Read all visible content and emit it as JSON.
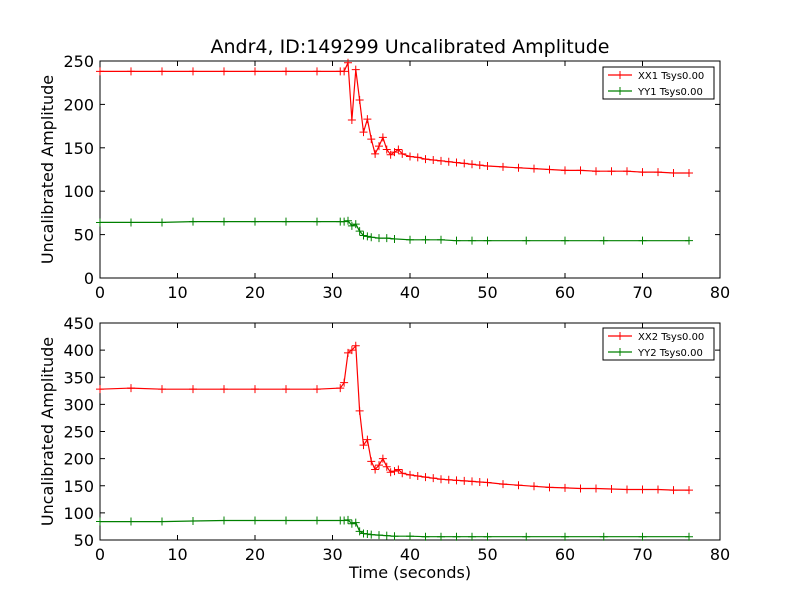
{
  "chart_data": [
    {
      "type": "line",
      "title": "Andr4, ID:149299 Uncalibrated Amplitude",
      "xlabel": "",
      "ylabel": "Uncalibrated Amplitude",
      "xlim": [
        0,
        80
      ],
      "ylim": [
        0,
        250
      ],
      "xticks": [
        "0",
        "10",
        "20",
        "30",
        "40",
        "50",
        "60",
        "70",
        "80"
      ],
      "yticks": [
        "0",
        "50",
        "100",
        "150",
        "200",
        "250"
      ],
      "legend_position": "top-right",
      "marker": "+",
      "series": [
        {
          "name": "XX1 Tsys0.00",
          "color": "#ff0000",
          "x": [
            0,
            4,
            8,
            12,
            16,
            20,
            24,
            28,
            31,
            31.5,
            32,
            32.5,
            33,
            33.5,
            34,
            34.5,
            35,
            35.5,
            36,
            36.5,
            37,
            37.5,
            38,
            38.5,
            39,
            40,
            41,
            42,
            43,
            44,
            45,
            46,
            47,
            48,
            49,
            50,
            52,
            54,
            56,
            58,
            60,
            62,
            64,
            66,
            68,
            70,
            72,
            74,
            76
          ],
          "values": [
            238,
            238,
            238,
            238,
            238,
            238,
            238,
            238,
            238,
            238,
            248,
            182,
            240,
            205,
            168,
            183,
            160,
            143,
            152,
            162,
            148,
            142,
            145,
            148,
            143,
            140,
            139,
            137,
            136,
            135,
            134,
            133,
            132,
            131,
            130,
            129,
            128,
            127,
            126,
            125,
            124,
            124,
            123,
            123,
            123,
            122,
            122,
            121,
            121
          ]
        },
        {
          "name": "YY1 Tsys0.00",
          "color": "#008000",
          "x": [
            0,
            4,
            8,
            12,
            16,
            20,
            24,
            28,
            31,
            31.5,
            32,
            32.5,
            33,
            33.5,
            34,
            34.5,
            35,
            36,
            37,
            38,
            40,
            42,
            44,
            46,
            48,
            50,
            55,
            60,
            65,
            70,
            76
          ],
          "values": [
            64,
            64,
            64,
            65,
            65,
            65,
            65,
            65,
            65,
            65,
            66,
            60,
            62,
            54,
            49,
            48,
            47,
            46,
            46,
            45,
            44,
            44,
            44,
            43,
            43,
            43,
            43,
            43,
            43,
            43,
            43
          ]
        }
      ]
    },
    {
      "type": "line",
      "title": "",
      "xlabel": "Time (seconds)",
      "ylabel": "Uncalibrated Amplitude",
      "xlim": [
        0,
        80
      ],
      "ylim": [
        50,
        450
      ],
      "xticks": [
        "0",
        "10",
        "20",
        "30",
        "40",
        "50",
        "60",
        "70",
        "80"
      ],
      "yticks": [
        "50",
        "100",
        "150",
        "200",
        "250",
        "300",
        "350",
        "400",
        "450"
      ],
      "legend_position": "top-right",
      "marker": "+",
      "series": [
        {
          "name": "XX2 Tsys0.00",
          "color": "#ff0000",
          "x": [
            0,
            4,
            8,
            12,
            16,
            20,
            24,
            28,
            31,
            31.5,
            32,
            32.5,
            33,
            33.5,
            34,
            34.5,
            35,
            35.5,
            36,
            36.5,
            37,
            37.5,
            38,
            38.5,
            39,
            40,
            41,
            42,
            43,
            44,
            45,
            46,
            47,
            48,
            49,
            50,
            52,
            54,
            56,
            58,
            60,
            62,
            64,
            66,
            68,
            70,
            72,
            74,
            76
          ],
          "values": [
            328,
            330,
            328,
            328,
            328,
            328,
            328,
            328,
            330,
            340,
            395,
            400,
            408,
            288,
            225,
            235,
            195,
            180,
            188,
            200,
            185,
            175,
            177,
            180,
            173,
            170,
            168,
            166,
            164,
            162,
            161,
            160,
            159,
            158,
            157,
            156,
            153,
            151,
            149,
            147,
            146,
            145,
            145,
            144,
            143,
            143,
            143,
            142,
            142
          ]
        },
        {
          "name": "YY2 Tsys0.00",
          "color": "#008000",
          "x": [
            0,
            4,
            8,
            12,
            16,
            20,
            24,
            28,
            31,
            31.5,
            32,
            32.5,
            33,
            33.5,
            34,
            34.5,
            35,
            36,
            37,
            38,
            40,
            42,
            44,
            46,
            48,
            50,
            55,
            60,
            65,
            70,
            76
          ],
          "values": [
            84,
            84,
            84,
            85,
            86,
            86,
            86,
            86,
            86,
            86,
            87,
            80,
            82,
            66,
            62,
            61,
            60,
            59,
            58,
            57,
            57,
            56,
            56,
            56,
            56,
            56,
            56,
            56,
            56,
            56,
            56
          ]
        }
      ]
    }
  ]
}
